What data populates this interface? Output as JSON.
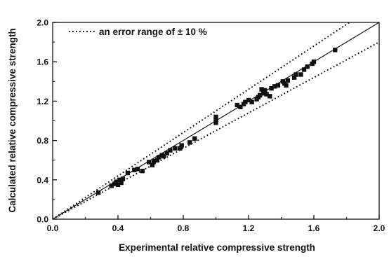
{
  "chart_data": {
    "type": "scatter",
    "title": "",
    "xlabel": "Experimental relative compressive strength",
    "ylabel": "Calculated relative compressive strength",
    "xlim": [
      0.0,
      2.0
    ],
    "ylim": [
      0.0,
      2.0
    ],
    "xticks": [
      "0.0",
      "0.4",
      "0.8",
      "1.2",
      "1.6",
      "2.0"
    ],
    "yticks": [
      "0.0",
      "0.4",
      "0.8",
      "1.2",
      "1.6",
      "2.0"
    ],
    "tick_values": [
      0.0,
      0.4,
      0.8,
      1.2,
      1.6,
      2.0
    ],
    "grid": false,
    "legend": {
      "position": "top-left",
      "entries": [
        {
          "label": "an error range of ± 10 %",
          "style": "dotted"
        }
      ]
    },
    "lines": [
      {
        "kind": "y = x",
        "slope": 1.0,
        "style": "solid"
      },
      {
        "kind": "+10%",
        "slope": 1.1,
        "style": "dotted"
      },
      {
        "kind": "-10%",
        "slope": 0.9,
        "style": "dotted"
      }
    ],
    "points": [
      [
        0.28,
        0.27
      ],
      [
        0.36,
        0.34
      ],
      [
        0.38,
        0.36
      ],
      [
        0.39,
        0.38
      ],
      [
        0.4,
        0.35
      ],
      [
        0.41,
        0.4
      ],
      [
        0.42,
        0.37
      ],
      [
        0.43,
        0.41
      ],
      [
        0.46,
        0.47
      ],
      [
        0.5,
        0.5
      ],
      [
        0.52,
        0.51
      ],
      [
        0.55,
        0.49
      ],
      [
        0.59,
        0.58
      ],
      [
        0.61,
        0.55
      ],
      [
        0.62,
        0.59
      ],
      [
        0.64,
        0.6
      ],
      [
        0.65,
        0.63
      ],
      [
        0.67,
        0.65
      ],
      [
        0.68,
        0.64
      ],
      [
        0.7,
        0.67
      ],
      [
        0.72,
        0.7
      ],
      [
        0.75,
        0.72
      ],
      [
        0.78,
        0.72
      ],
      [
        0.79,
        0.75
      ],
      [
        0.84,
        0.78
      ],
      [
        0.87,
        0.82
      ],
      [
        1.0,
        0.98
      ],
      [
        1.0,
        1.01
      ],
      [
        1.0,
        1.04
      ],
      [
        1.13,
        1.16
      ],
      [
        1.15,
        1.14
      ],
      [
        1.17,
        1.17
      ],
      [
        1.18,
        1.19
      ],
      [
        1.2,
        1.21
      ],
      [
        1.22,
        1.19
      ],
      [
        1.25,
        1.22
      ],
      [
        1.26,
        1.24
      ],
      [
        1.27,
        1.26
      ],
      [
        1.28,
        1.32
      ],
      [
        1.29,
        1.28
      ],
      [
        1.3,
        1.31
      ],
      [
        1.31,
        1.27
      ],
      [
        1.33,
        1.25
      ],
      [
        1.34,
        1.33
      ],
      [
        1.36,
        1.35
      ],
      [
        1.38,
        1.36
      ],
      [
        1.41,
        1.4
      ],
      [
        1.42,
        1.38
      ],
      [
        1.43,
        1.36
      ],
      [
        1.44,
        1.41
      ],
      [
        1.48,
        1.44
      ],
      [
        1.49,
        1.47
      ],
      [
        1.52,
        1.47
      ],
      [
        1.54,
        1.52
      ],
      [
        1.56,
        1.55
      ],
      [
        1.59,
        1.58
      ],
      [
        1.6,
        1.6
      ],
      [
        1.73,
        1.72
      ]
    ]
  }
}
